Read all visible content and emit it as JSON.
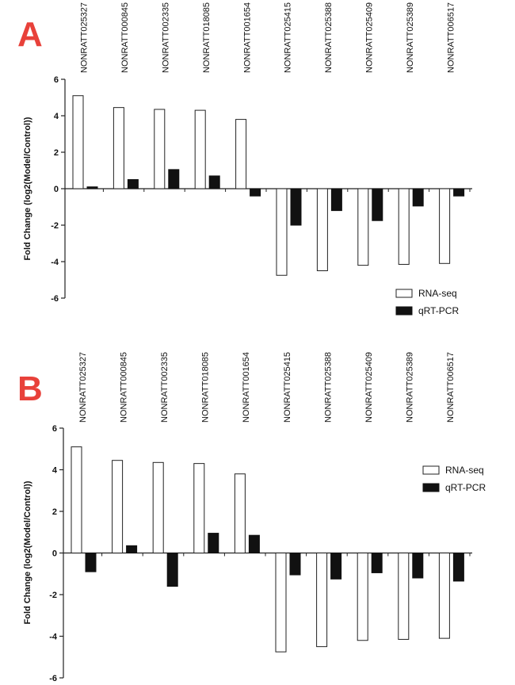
{
  "chart_data": [
    {
      "type": "bar",
      "panel": "A",
      "title": "",
      "xlabel": "",
      "ylabel": "Fold Change (log2(Model/Control))",
      "ylim": [
        -6,
        6
      ],
      "yticks": [
        -6,
        -4,
        -2,
        0,
        2,
        4,
        6
      ],
      "legend_position": "bottom-right",
      "categories": [
        "NONRATT025327",
        "NONRATT000845",
        "NONRATT002335",
        "NONRATT018085",
        "NONRATT001654",
        "NONRATT025415",
        "NONRATT025388",
        "NONRATT025409",
        "NONRATT025389",
        "NONRATT006517"
      ],
      "series": [
        {
          "name": "RNA-seq",
          "color": "#ffffff",
          "values": [
            5.1,
            4.45,
            4.35,
            4.3,
            3.8,
            -4.75,
            -4.5,
            -4.2,
            -4.15,
            -4.1
          ]
        },
        {
          "name": "qRT-PCR",
          "color": "#111111",
          "values": [
            0.1,
            0.5,
            1.05,
            0.7,
            -0.4,
            -2.0,
            -1.2,
            -1.75,
            -0.95,
            -0.4
          ]
        }
      ]
    },
    {
      "type": "bar",
      "panel": "B",
      "title": "",
      "xlabel": "",
      "ylabel": "Fold Change (log2(Model/Control))",
      "ylim": [
        -6,
        6
      ],
      "yticks": [
        -6,
        -4,
        -2,
        0,
        2,
        4,
        6
      ],
      "legend_position": "top-right",
      "categories": [
        "NONRATT025327",
        "NONRATT000845",
        "NONRATT002335",
        "NONRATT018085",
        "NONRATT001654",
        "NONRATT025415",
        "NONRATT025388",
        "NONRATT025409",
        "NONRATT025389",
        "NONRATT006517"
      ],
      "series": [
        {
          "name": "RNA-seq",
          "color": "#ffffff",
          "values": [
            5.1,
            4.45,
            4.35,
            4.3,
            3.8,
            -4.75,
            -4.5,
            -4.2,
            -4.15,
            -4.1
          ]
        },
        {
          "name": "qRT-PCR",
          "color": "#111111",
          "values": [
            -0.9,
            0.35,
            -1.6,
            0.95,
            0.85,
            -1.05,
            -1.25,
            -0.95,
            -1.2,
            -1.35
          ]
        }
      ]
    }
  ]
}
